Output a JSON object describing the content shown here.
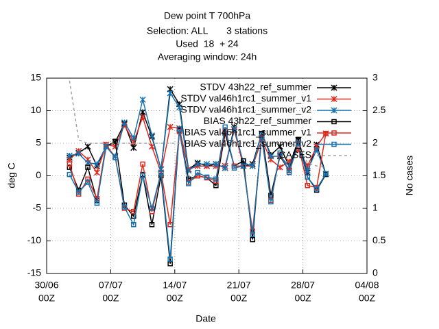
{
  "chart_data": {
    "type": "line",
    "title": [
      "Dew point T 700hPa",
      "Selection: ALL       3 stations",
      "Used  18  + 24",
      "Averaging window: 24h"
    ],
    "xlabel": "Date",
    "ylabel": "deg C",
    "y2label": "No cases",
    "xlim": [
      0,
      35
    ],
    "xticks": [
      {
        "value": 0,
        "label": [
          "30/06",
          "00Z"
        ]
      },
      {
        "value": 7,
        "label": [
          "07/07",
          "00Z"
        ]
      },
      {
        "value": 14,
        "label": [
          "14/07",
          "00Z"
        ]
      },
      {
        "value": 21,
        "label": [
          "21/07",
          "00Z"
        ]
      },
      {
        "value": 28,
        "label": [
          "28/07",
          "00Z"
        ]
      },
      {
        "value": 35,
        "label": [
          "04/08",
          "00Z"
        ]
      }
    ],
    "ylim": [
      -15,
      15
    ],
    "yticks": [
      -15,
      -10,
      -5,
      0,
      5,
      10,
      15
    ],
    "y2lim": [
      0,
      3
    ],
    "y2ticks": [
      0,
      0.5,
      1,
      1.5,
      2,
      2.5,
      3
    ],
    "grid": true,
    "legend": "upper right",
    "x": [
      2.5,
      3.5,
      4.5,
      5.5,
      6.5,
      7.5,
      8.5,
      9.5,
      10.5,
      11.5,
      12.5,
      13.5,
      14.5,
      15.5,
      16.5,
      17.5,
      18.5,
      19.5,
      20.5,
      21.5,
      22.5,
      23.5,
      24.5,
      25.5,
      26.5,
      27.5,
      28.5,
      29.5,
      30.5
    ],
    "series": [
      {
        "name": "STDV 43h22_ref_summer",
        "color": "#000000",
        "marker": "star",
        "values": [
          2.8,
          3.5,
          4.5,
          1.5,
          4.5,
          5.2,
          8,
          4.3,
          9.8,
          6,
          1,
          13.3,
          11,
          1,
          2,
          1.5,
          1.8,
          1.2,
          7.5,
          1.5,
          1.8,
          6.5,
          3.2,
          4.5,
          1.5,
          5.5,
          0.5,
          4.8,
          0.3
        ]
      },
      {
        "name": "STDV val46h1rc1_summer_v1",
        "color": "#e0281c",
        "marker": "star",
        "values": [
          2.5,
          3.8,
          2.5,
          0.5,
          4.8,
          4.5,
          7.8,
          5.2,
          9,
          4.5,
          0.5,
          7.5,
          7.3,
          1,
          1.5,
          1.5,
          1.5,
          1.5,
          7,
          1.5,
          1.5,
          5.5,
          2.5,
          1.3,
          2.2,
          4,
          1.5,
          4.5,
          6.5
        ]
      },
      {
        "name": "STDV val46h1rc1_summer_v2",
        "color": "#1572b0",
        "marker": "star",
        "values": [
          3.1,
          3.4,
          2,
          1.8,
          4.5,
          3,
          8.2,
          5.8,
          11.7,
          6.2,
          1,
          12.7,
          10.5,
          0.8,
          1.8,
          1.8,
          1.8,
          1.2,
          7.2,
          2,
          1.5,
          6.5,
          3,
          3,
          1.5,
          5,
          0.8,
          4,
          0.3
        ]
      },
      {
        "name": "BIAS 43h22_ref_summer",
        "color": "#000000",
        "marker": "square",
        "values": [
          1.3,
          -2.2,
          1.3,
          -3.8,
          4.5,
          5.3,
          -4.5,
          -6.2,
          0.2,
          -7.5,
          0,
          -13.5,
          7,
          -0.5,
          0,
          -0.3,
          -1.5,
          6.5,
          1.5,
          2.3,
          -9.8,
          6.5,
          -3,
          3,
          0.8,
          5.5,
          -0.2,
          -2.2,
          0.2
        ]
      },
      {
        "name": "BIAS val46h1rc1_summer_v1",
        "color": "#e0281c",
        "marker": "square",
        "values": [
          1.8,
          -2.8,
          -0.5,
          -3.5,
          4.8,
          2.8,
          -5,
          -5.5,
          1.8,
          -5.5,
          0.5,
          -7.5,
          6.8,
          -1,
          0,
          -0.3,
          -0.8,
          7,
          1.5,
          1.5,
          -8.5,
          5.8,
          -3.8,
          3.2,
          0.8,
          4.8,
          -1.5,
          -1.8,
          6.5
        ]
      },
      {
        "name": "BIAS val46h1rc1_summer_v2",
        "color": "#1572b0",
        "marker": "square",
        "values": [
          0.2,
          -2.5,
          -1,
          -4.2,
          4.5,
          2.8,
          -4.8,
          -7.5,
          0,
          -5,
          0.5,
          -12.8,
          7.2,
          -1.2,
          0.5,
          -0.2,
          -0.5,
          7.5,
          1.2,
          1.5,
          -9,
          6,
          -4,
          3.5,
          0.5,
          5,
          -0.2,
          -2,
          0.3
        ]
      },
      {
        "name": "CASES",
        "color": "#a0a0a0",
        "dashed": true,
        "axis": "y2",
        "values": [
          2.96,
          2.05,
          2,
          2,
          2,
          2,
          2,
          2,
          2,
          2,
          2,
          2,
          2,
          2,
          2,
          2,
          2,
          2,
          2,
          2,
          2,
          2,
          2,
          2,
          2,
          1.95,
          1.7,
          1.65,
          1.65
        ]
      }
    ]
  }
}
